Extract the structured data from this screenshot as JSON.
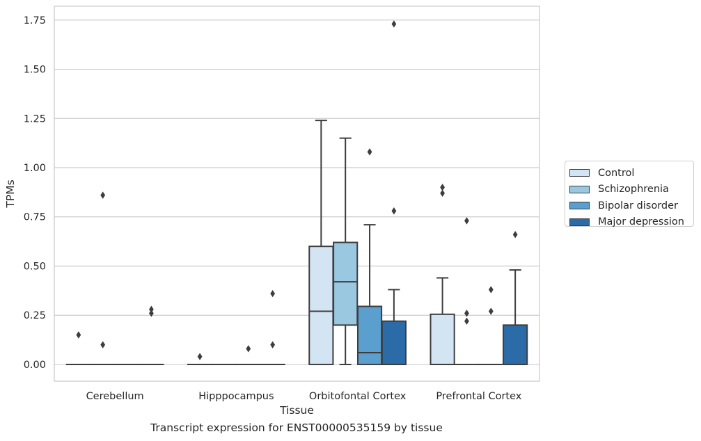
{
  "chart_data": {
    "type": "box",
    "title": "",
    "xlabel": "Tissue",
    "ylabel": "TPMs",
    "caption": "Transcript expression for ENST00000535159 by tissue",
    "ylim": [
      -0.085,
      1.82
    ],
    "yticks": [
      0.0,
      0.25,
      0.5,
      0.75,
      1.0,
      1.25,
      1.5,
      1.75
    ],
    "ytick_labels": [
      "0.00",
      "0.25",
      "0.50",
      "0.75",
      "1.00",
      "1.25",
      "1.50",
      "1.75"
    ],
    "grid": true,
    "legend_position": "right",
    "categories": [
      "Cerebellum",
      "Hipppocampus",
      "Orbitofontal Cortex",
      "Prefrontal Cortex"
    ],
    "series": [
      {
        "name": "Control",
        "color": "#d3e4f3",
        "boxes": [
          {
            "q1": 0,
            "median": 0,
            "q3": 0,
            "whisker_low": 0,
            "whisker_high": 0,
            "outliers": [
              0.15
            ]
          },
          {
            "q1": 0,
            "median": 0,
            "q3": 0,
            "whisker_low": 0,
            "whisker_high": 0,
            "outliers": [
              0.04
            ]
          },
          {
            "q1": 0,
            "median": 0.27,
            "q3": 0.6,
            "whisker_low": 0,
            "whisker_high": 1.24,
            "outliers": []
          },
          {
            "q1": 0,
            "median": 0,
            "q3": 0.255,
            "whisker_low": 0,
            "whisker_high": 0.44,
            "outliers": [
              0.87,
              0.9
            ]
          }
        ]
      },
      {
        "name": "Schizophrenia",
        "color": "#9ac8e0",
        "boxes": [
          {
            "q1": 0,
            "median": 0,
            "q3": 0,
            "whisker_low": 0,
            "whisker_high": 0,
            "outliers": [
              0.1,
              0.86
            ]
          },
          {
            "q1": 0,
            "median": 0,
            "q3": 0,
            "whisker_low": 0,
            "whisker_high": 0,
            "outliers": []
          },
          {
            "q1": 0.2,
            "median": 0.42,
            "q3": 0.62,
            "whisker_low": 0,
            "whisker_high": 1.15,
            "outliers": []
          },
          {
            "q1": 0,
            "median": 0,
            "q3": 0,
            "whisker_low": 0,
            "whisker_high": 0,
            "outliers": [
              0.22,
              0.26,
              0.73
            ]
          }
        ]
      },
      {
        "name": "Bipolar disorder",
        "color": "#5a9fcd",
        "boxes": [
          {
            "q1": 0,
            "median": 0,
            "q3": 0,
            "whisker_low": 0,
            "whisker_high": 0,
            "outliers": []
          },
          {
            "q1": 0,
            "median": 0,
            "q3": 0,
            "whisker_low": 0,
            "whisker_high": 0,
            "outliers": [
              0.08
            ]
          },
          {
            "q1": 0,
            "median": 0.06,
            "q3": 0.295,
            "whisker_low": 0,
            "whisker_high": 0.71,
            "outliers": [
              1.08
            ]
          },
          {
            "q1": 0,
            "median": 0,
            "q3": 0,
            "whisker_low": 0,
            "whisker_high": 0,
            "outliers": [
              0.27,
              0.38
            ]
          }
        ]
      },
      {
        "name": "Major depression",
        "color": "#2b6ca8",
        "boxes": [
          {
            "q1": 0,
            "median": 0,
            "q3": 0,
            "whisker_low": 0,
            "whisker_high": 0,
            "outliers": [
              0.26,
              0.28
            ]
          },
          {
            "q1": 0,
            "median": 0,
            "q3": 0,
            "whisker_low": 0,
            "whisker_high": 0,
            "outliers": [
              0.1,
              0.36
            ]
          },
          {
            "q1": 0,
            "median": 0,
            "q3": 0.22,
            "whisker_low": 0,
            "whisker_high": 0.38,
            "outliers": [
              0.78,
              1.73
            ]
          },
          {
            "q1": 0,
            "median": 0,
            "q3": 0.2,
            "whisker_low": 0,
            "whisker_high": 0.48,
            "outliers": [
              0.66
            ]
          }
        ]
      }
    ]
  }
}
